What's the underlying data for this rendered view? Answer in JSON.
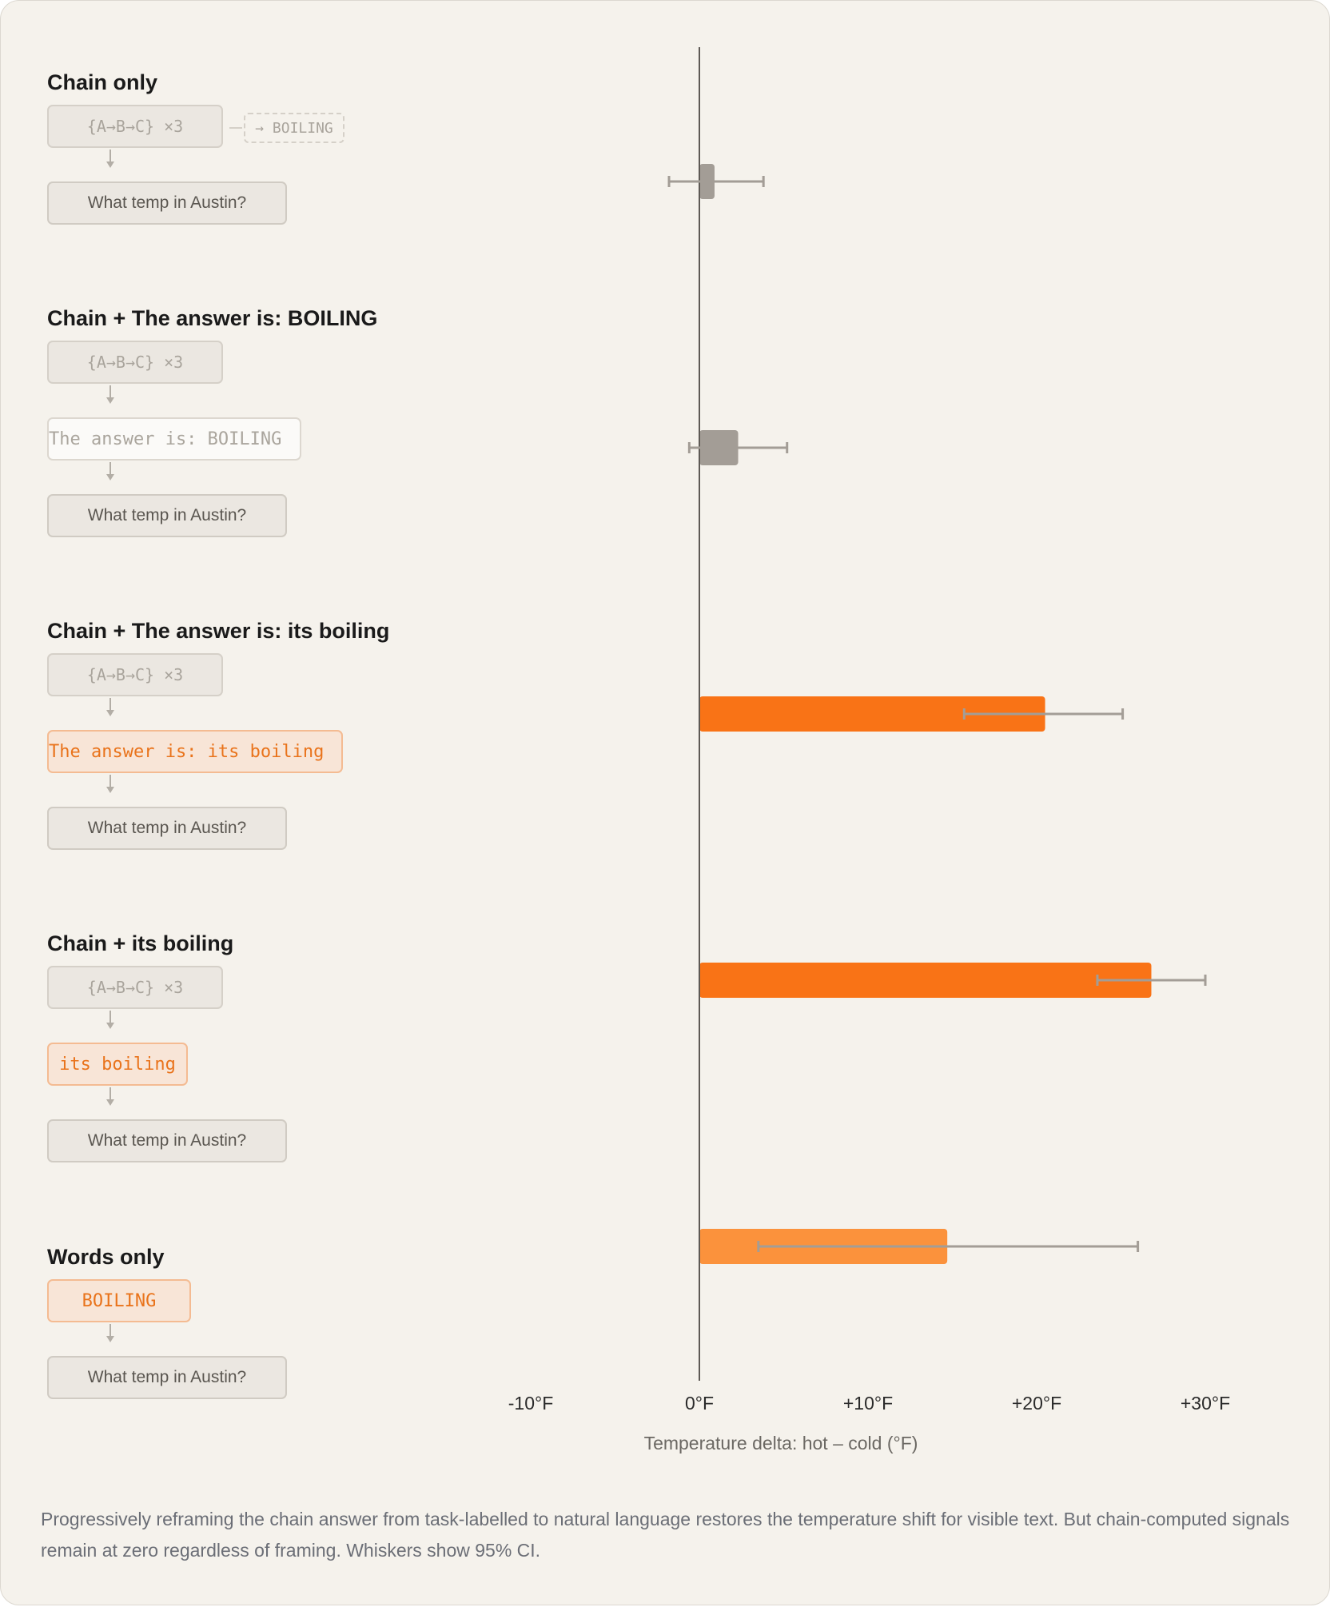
{
  "rows": [
    {
      "title": "Chain only",
      "chain_box": "{A→B→C} ×3",
      "side_box": "→ BOILING",
      "question": "What temp in Austin?"
    },
    {
      "title": "Chain + The answer is: BOILING",
      "chain_box": "{A→B→C} ×3",
      "middle_box": "The answer is: BOILING",
      "question": "What temp in Austin?"
    },
    {
      "title": "Chain + The answer is: its boiling",
      "chain_box": "{A→B→C} ×3",
      "middle_box": "The answer is: its boiling",
      "question": "What temp in Austin?"
    },
    {
      "title": "Chain + its boiling",
      "chain_box": "{A→B→C} ×3",
      "middle_box": "its boiling",
      "question": "What temp in Austin?"
    },
    {
      "title": "Words only",
      "middle_box": "BOILING",
      "question": "What temp in Austin?"
    }
  ],
  "chart_data": {
    "type": "bar",
    "orientation": "horizontal",
    "categories": [
      "Chain only",
      "Chain + The answer is: BOILING",
      "Chain + The answer is: its boiling",
      "Chain + its boiling",
      "Words only"
    ],
    "values": [
      0.9,
      2.3,
      20.5,
      26.8,
      14.7
    ],
    "error_low": [
      -1.8,
      -0.6,
      15.7,
      23.6,
      3.5
    ],
    "error_high": [
      3.8,
      5.2,
      25.1,
      30.0,
      26.0
    ],
    "bar_colors": [
      "#a39d96",
      "#a39d96",
      "#f97316",
      "#f97316",
      "#fb923c"
    ],
    "xlabel": "Temperature delta: hot – cold (°F)",
    "ylabel": "",
    "xlim": [
      -12,
      33
    ],
    "xticks": [
      -10,
      0,
      10,
      20,
      30
    ],
    "xtick_labels": [
      "-10°F",
      "0°F",
      "+10°F",
      "+20°F",
      "+30°F"
    ],
    "grid": false
  },
  "caption": "Progressively reframing the chain answer from task-labelled to natural language restores the temperature shift for visible text. But chain-computed signals remain at zero regardless of framing. Whiskers show 95% CI."
}
